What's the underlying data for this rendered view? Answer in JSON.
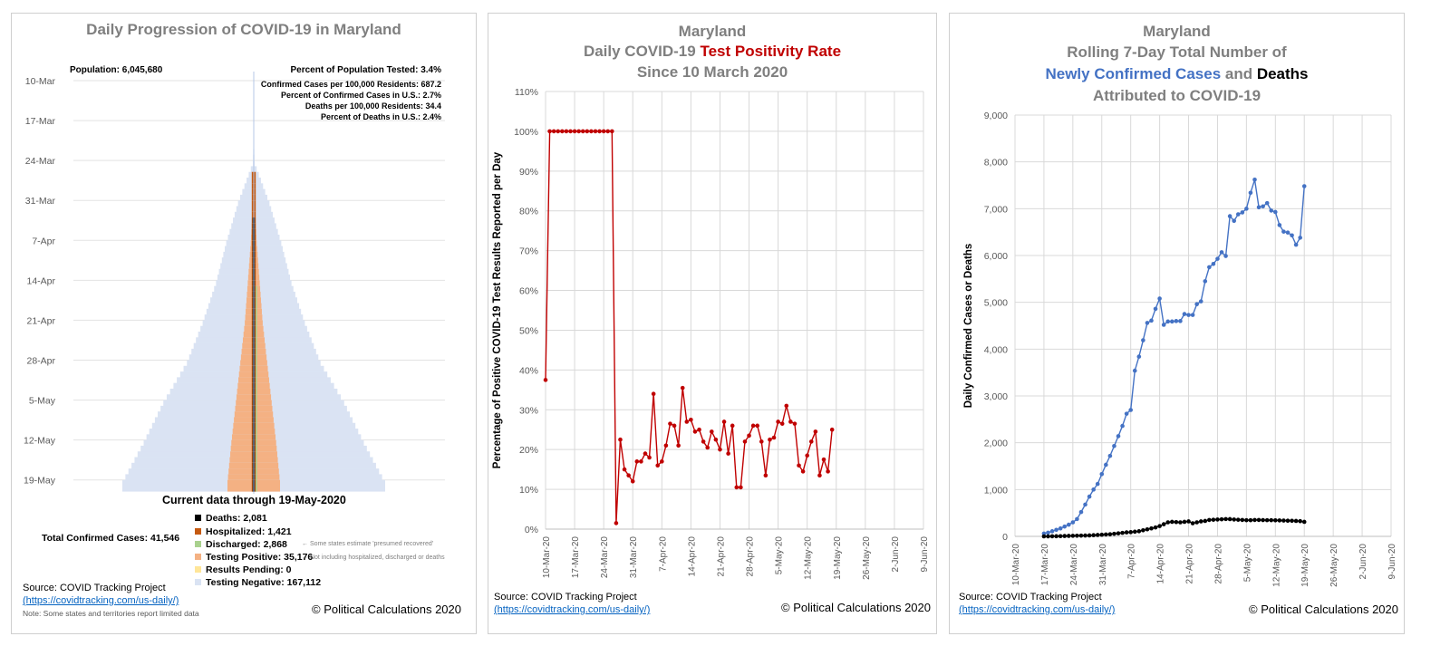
{
  "panel1": {
    "title": "Daily Progression of COVID-19 in Maryland",
    "population": "Population: 6,045,680",
    "stats": [
      "Percent of Population Tested: 3.4%",
      "Confirmed Cases per 100,000 Residents: 687.2",
      "Percent of Confirmed Cases in U.S.: 2.7%",
      "Deaths per 100,000 Residents: 34.4",
      "Percent of Deaths in U.S.: 2.4%"
    ],
    "date_labels": [
      "10-Mar",
      "17-Mar",
      "24-Mar",
      "31-Mar",
      "7-Apr",
      "14-Apr",
      "21-Apr",
      "28-Apr",
      "5-May",
      "12-May",
      "19-May"
    ],
    "current_data": "Current data through 19-May-2020",
    "total_confirmed": "Total Confirmed Cases: 41,546",
    "legend": [
      {
        "label": "Deaths: 2,081",
        "color": "#000000"
      },
      {
        "label": "Hospitalized: 1,421",
        "color": "#c55a11"
      },
      {
        "label": "Discharged: 2,868",
        "color": "#a9d18e"
      },
      {
        "label": "Testing Positive: 35,176",
        "color": "#f4b183"
      },
      {
        "label": "Results Pending: 0",
        "color": "#ffe699"
      },
      {
        "label": "Testing Negative: 167,112",
        "color": "#dae3f3"
      }
    ],
    "notes": [
      "← Some states estimate 'presumed recovered'",
      "← Not including hospitalized, discharged or deaths"
    ],
    "source_label": "Source: COVID Tracking Project",
    "source_link": "(https://covidtracking.com/us-daily/)",
    "footnote": "Note: Some states and territories report limited data",
    "copyright": "© Political Calculations 2020",
    "colors": {
      "negative": "#dae3f3",
      "positive": "#f4b183",
      "hospitalized": "#c55a11",
      "deaths": "#000000",
      "discharged": "#a9d18e",
      "center_line": "#b4c7e7"
    }
  },
  "panel2": {
    "title_line1": "Maryland",
    "title_line2_prefix": "Daily COVID-19 ",
    "title_line2_highlight": "Test Positivity Rate",
    "title_line3": "Since 10 March 2020",
    "source_label": "Source: COVID Tracking Project",
    "source_link": "(https://covidtracking.com/us-daily/)",
    "copyright": "© Political Calculations 2020"
  },
  "panel3": {
    "title_line1": "Maryland",
    "title_line2": "Rolling 7-Day Total Number of",
    "title_line3_blue": "Newly Confirmed Cases",
    "title_line3_mid": " and ",
    "title_line3_black": "Deaths",
    "title_line4": "Attributed to COVID-19",
    "source_label": "Source: COVID Tracking Project",
    "source_link": "(https://covidtracking.com/us-daily/)",
    "copyright": "© Political Calculations 2020"
  },
  "chart_data": [
    {
      "type": "area",
      "title": "Daily Progression of COVID-19 in Maryland",
      "categories": [
        "10-Mar",
        "17-Mar",
        "24-Mar",
        "31-Mar",
        "7-Apr",
        "14-Apr",
        "21-Apr",
        "28-Apr",
        "5-May",
        "12-May",
        "19-May"
      ],
      "series": [
        {
          "name": "Testing Negative",
          "values": [
            0,
            0,
            1000,
            20000,
            35000,
            48000,
            65000,
            85000,
            115000,
            140000,
            167112
          ]
        },
        {
          "name": "Testing Positive",
          "values": [
            0,
            0,
            300,
            1500,
            4000,
            8000,
            12000,
            18000,
            24000,
            30000,
            35176
          ]
        },
        {
          "name": "Hospitalized",
          "values": [
            0,
            0,
            0,
            200,
            500,
            800,
            1000,
            1200,
            1300,
            1400,
            1421
          ]
        },
        {
          "name": "Deaths",
          "values": [
            0,
            0,
            0,
            20,
            100,
            300,
            600,
            1000,
            1400,
            1800,
            2081
          ]
        }
      ]
    },
    {
      "type": "line",
      "title": "Maryland Daily COVID-19 Test Positivity Rate Since 10 March 2020",
      "ylabel": "Percentage of Positive COVID-19 Test Results Reported per Day",
      "ylim": [
        0,
        110
      ],
      "yticks": [
        "0%",
        "10%",
        "20%",
        "30%",
        "40%",
        "50%",
        "60%",
        "70%",
        "80%",
        "90%",
        "100%",
        "110%"
      ],
      "xticks": [
        "10-Mar-20",
        "17-Mar-20",
        "24-Mar-20",
        "31-Mar-20",
        "7-Apr-20",
        "14-Apr-20",
        "21-Apr-20",
        "28-Apr-20",
        "5-May-20",
        "12-May-20",
        "19-May-20",
        "26-May-20",
        "2-Jun-20",
        "9-Jun-20"
      ],
      "x_start": "10-Mar-20",
      "x_end": "9-Jun-20",
      "series": [
        {
          "values": [
            37.5,
            100,
            100,
            100,
            100,
            100,
            100,
            100,
            100,
            100,
            100,
            100,
            100,
            100,
            100,
            100,
            100,
            1.5,
            22.5,
            15,
            13.5,
            12,
            17,
            17,
            19,
            18,
            34,
            16,
            17,
            21,
            26.5,
            26,
            21,
            35.5,
            27,
            27.5,
            24.5,
            25,
            22,
            20.5,
            24.5,
            22.5,
            20,
            27,
            19,
            26,
            10.5,
            10.5,
            22,
            23.5,
            26,
            26,
            22,
            13.5,
            22.5,
            23,
            27,
            26.5,
            31,
            27,
            26.5,
            16,
            14.5,
            18.5,
            22,
            24.5,
            13.5,
            17.5,
            14.5,
            25
          ]
        }
      ]
    },
    {
      "type": "line",
      "title": "Maryland Rolling 7-Day Total Number of Newly Confirmed Cases and Deaths Attributed to COVID-19",
      "ylabel": "Daily Confirmed Cases or Deaths",
      "ylim": [
        0,
        9000
      ],
      "yticks": [
        "0",
        "1,000",
        "2,000",
        "3,000",
        "4,000",
        "5,000",
        "6,000",
        "7,000",
        "8,000",
        "9,000"
      ],
      "xticks": [
        "10-Mar-20",
        "17-Mar-20",
        "24-Mar-20",
        "31-Mar-20",
        "7-Apr-20",
        "14-Apr-20",
        "21-Apr-20",
        "28-Apr-20",
        "5-May-20",
        "12-May-20",
        "19-May-20",
        "26-May-20",
        "2-Jun-20",
        "9-Jun-20"
      ],
      "x_start": "10-Mar-20",
      "x_end": "9-Jun-20",
      "series": [
        {
          "name": "Newly Confirmed Cases",
          "color": "#4472c4",
          "values": [
            60,
            80,
            110,
            140,
            170,
            210,
            250,
            300,
            370,
            520,
            680,
            850,
            1000,
            1120,
            1330,
            1530,
            1720,
            1930,
            2140,
            2360,
            2620,
            2700,
            3540,
            3840,
            4190,
            4560,
            4610,
            4860,
            5080,
            4520,
            4590,
            4590,
            4600,
            4600,
            4750,
            4730,
            4730,
            4960,
            5020,
            5450,
            5750,
            5820,
            5930,
            6070,
            5990,
            6840,
            6740,
            6880,
            6920,
            7000,
            7340,
            7620,
            7030,
            7050,
            7120,
            6960,
            6930,
            6650,
            6510,
            6490,
            6430,
            6230,
            6380,
            7480
          ]
        },
        {
          "name": "Deaths",
          "color": "#000000",
          "values": [
            0,
            0,
            2,
            3,
            5,
            8,
            10,
            12,
            14,
            16,
            18,
            20,
            25,
            30,
            35,
            40,
            45,
            55,
            65,
            75,
            85,
            90,
            100,
            110,
            130,
            150,
            170,
            190,
            220,
            260,
            300,
            310,
            305,
            300,
            310,
            320,
            280,
            300,
            320,
            330,
            350,
            355,
            360,
            365,
            370,
            368,
            360,
            355,
            350,
            345,
            345,
            350,
            350,
            348,
            346,
            345,
            343,
            340,
            338,
            335,
            333,
            330,
            325,
            310
          ]
        }
      ]
    }
  ]
}
